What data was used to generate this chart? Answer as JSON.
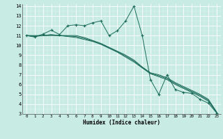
{
  "xlabel": "Humidex (Indice chaleur)",
  "bg_color": "#c8ebe3",
  "line_color": "#1a6b5a",
  "xlim": [
    -0.5,
    23.5
  ],
  "ylim": [
    3,
    14.2
  ],
  "xticks": [
    0,
    1,
    2,
    3,
    4,
    5,
    6,
    7,
    8,
    9,
    10,
    11,
    12,
    13,
    14,
    15,
    16,
    17,
    18,
    19,
    20,
    21,
    22,
    23
  ],
  "yticks": [
    3,
    4,
    5,
    6,
    7,
    8,
    9,
    10,
    11,
    12,
    13,
    14
  ],
  "series": [
    {
      "x": [
        0,
        1,
        2,
        3,
        4,
        5,
        6,
        7,
        8,
        9,
        10,
        11,
        12,
        13,
        14,
        15,
        16,
        17,
        18,
        19,
        20,
        21,
        22,
        23
      ],
      "y": [
        11.0,
        10.85,
        11.15,
        11.55,
        11.1,
        12.0,
        12.1,
        12.0,
        12.3,
        12.5,
        11.0,
        11.5,
        12.5,
        14.0,
        11.0,
        6.5,
        5.0,
        7.0,
        5.5,
        5.2,
        5.1,
        4.5,
        4.1,
        3.1
      ],
      "marker": true
    },
    {
      "x": [
        0,
        1,
        2,
        3,
        4,
        5,
        6,
        7,
        8,
        9,
        10,
        11,
        12,
        13,
        14,
        15,
        16,
        17,
        18,
        19,
        20,
        21,
        22,
        23
      ],
      "y": [
        11.0,
        11.0,
        11.0,
        11.0,
        11.0,
        11.0,
        11.0,
        10.8,
        10.5,
        10.2,
        9.8,
        9.4,
        9.0,
        8.5,
        7.8,
        7.2,
        7.0,
        6.7,
        6.2,
        5.8,
        5.4,
        5.0,
        4.5,
        3.2
      ],
      "marker": false
    },
    {
      "x": [
        0,
        1,
        2,
        3,
        4,
        5,
        6,
        7,
        8,
        9,
        10,
        11,
        12,
        13,
        14,
        15,
        16,
        17,
        18,
        19,
        20,
        21,
        22,
        23
      ],
      "y": [
        11.0,
        10.9,
        11.0,
        11.1,
        11.0,
        10.9,
        10.8,
        10.6,
        10.4,
        10.1,
        9.7,
        9.3,
        8.8,
        8.3,
        7.7,
        7.1,
        6.8,
        6.5,
        6.0,
        5.6,
        5.2,
        4.8,
        4.3,
        3.15
      ],
      "marker": false
    },
    {
      "x": [
        0,
        1,
        2,
        3,
        4,
        5,
        6,
        7,
        8,
        9,
        10,
        11,
        12,
        13,
        14,
        15,
        16,
        17,
        18,
        19,
        20,
        21,
        22,
        23
      ],
      "y": [
        11.0,
        10.95,
        11.0,
        11.05,
        11.0,
        10.95,
        10.9,
        10.7,
        10.45,
        10.15,
        9.75,
        9.35,
        8.9,
        8.4,
        7.75,
        7.15,
        6.9,
        6.6,
        6.1,
        5.7,
        5.3,
        4.9,
        4.4,
        3.2
      ],
      "marker": false
    }
  ]
}
